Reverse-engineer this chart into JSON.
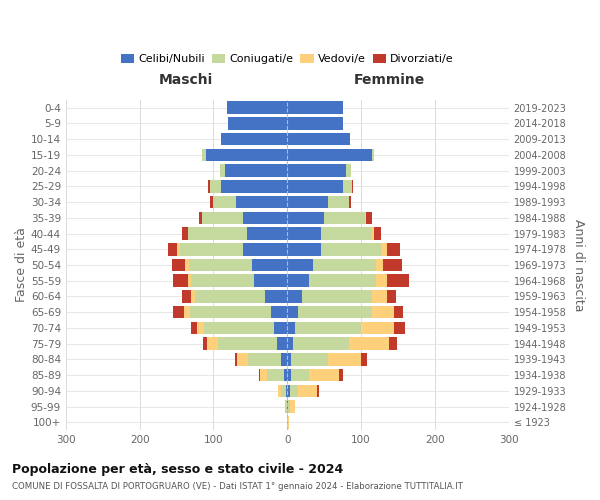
{
  "age_groups": [
    "0-4",
    "5-9",
    "10-14",
    "15-19",
    "20-24",
    "25-29",
    "30-34",
    "35-39",
    "40-44",
    "45-49",
    "50-54",
    "55-59",
    "60-64",
    "65-69",
    "70-74",
    "75-79",
    "80-84",
    "85-89",
    "90-94",
    "95-99",
    "100+"
  ],
  "birth_years": [
    "2019-2023",
    "2014-2018",
    "2009-2013",
    "2004-2008",
    "1999-2003",
    "1994-1998",
    "1989-1993",
    "1984-1988",
    "1979-1983",
    "1974-1978",
    "1969-1973",
    "1964-1968",
    "1959-1963",
    "1954-1958",
    "1949-1953",
    "1944-1948",
    "1939-1943",
    "1934-1938",
    "1929-1933",
    "1924-1928",
    "≤ 1923"
  ],
  "maschi": {
    "celibi": [
      82,
      80,
      90,
      110,
      85,
      90,
      70,
      60,
      55,
      60,
      48,
      45,
      30,
      22,
      18,
      14,
      8,
      5,
      2,
      1,
      0
    ],
    "coniugati": [
      0,
      0,
      0,
      5,
      6,
      15,
      30,
      55,
      80,
      85,
      85,
      85,
      95,
      110,
      95,
      80,
      45,
      22,
      6,
      2,
      1
    ],
    "vedovi": [
      0,
      0,
      0,
      0,
      0,
      0,
      0,
      0,
      0,
      5,
      5,
      5,
      5,
      8,
      10,
      15,
      15,
      10,
      5,
      0,
      0
    ],
    "divorziati": [
      0,
      0,
      0,
      0,
      0,
      2,
      5,
      5,
      8,
      12,
      18,
      20,
      12,
      15,
      8,
      5,
      3,
      2,
      0,
      0,
      0
    ]
  },
  "femmine": {
    "nubili": [
      75,
      75,
      85,
      115,
      80,
      75,
      55,
      50,
      45,
      45,
      35,
      30,
      20,
      15,
      10,
      8,
      5,
      5,
      3,
      1,
      0
    ],
    "coniugate": [
      0,
      0,
      0,
      3,
      6,
      12,
      28,
      55,
      70,
      82,
      85,
      90,
      95,
      100,
      90,
      75,
      50,
      25,
      12,
      3,
      0
    ],
    "vedove": [
      0,
      0,
      0,
      0,
      0,
      0,
      0,
      2,
      2,
      8,
      10,
      15,
      20,
      30,
      45,
      55,
      45,
      40,
      25,
      6,
      2
    ],
    "divorziate": [
      0,
      0,
      0,
      0,
      0,
      2,
      3,
      8,
      10,
      18,
      25,
      30,
      12,
      12,
      15,
      10,
      8,
      5,
      3,
      0,
      0
    ]
  },
  "colors": {
    "celibi_nubili": "#4472C4",
    "coniugati": "#C5D89D",
    "vedovi": "#FFD07B",
    "divorziati": "#C0392B"
  },
  "xlim": 300,
  "title": "Popolazione per età, sesso e stato civile - 2024",
  "subtitle": "COMUNE DI FOSSALTA DI PORTOGRUARO (VE) - Dati ISTAT 1° gennaio 2024 - Elaborazione TUTTITALIA.IT",
  "ylabel_left": "Fasce di età",
  "ylabel_right": "Anni di nascita",
  "xlabel_maschi": "Maschi",
  "xlabel_femmine": "Femmine",
  "background_color": "#ffffff"
}
